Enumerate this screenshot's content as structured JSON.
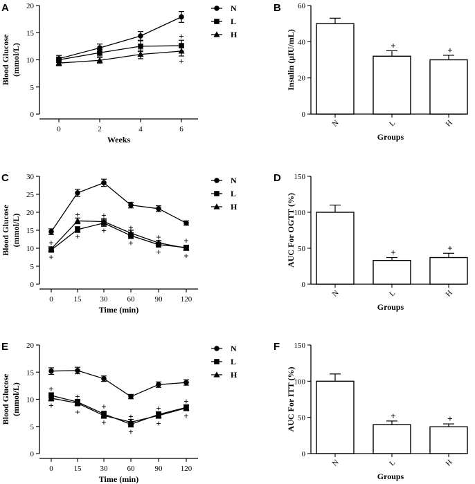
{
  "chart_data": [
    {
      "id": "A",
      "type": "line",
      "panel": "A",
      "xlabel": "Weeks",
      "ylabel": [
        "Blood Glucose",
        "(mmol/L)"
      ],
      "x": [
        0,
        2,
        4,
        6
      ],
      "xticks": [
        "0",
        "2",
        "4",
        "6"
      ],
      "ylim": [
        0,
        20
      ],
      "yticks": [
        0,
        5,
        10,
        15,
        20
      ],
      "series": [
        {
          "name": "N",
          "marker": "circle",
          "values": [
            10.2,
            12.2,
            14.4,
            17.9
          ],
          "errors": [
            0.6,
            0.7,
            0.8,
            1.0
          ]
        },
        {
          "name": "L",
          "marker": "square",
          "values": [
            10.0,
            11.3,
            12.5,
            12.6
          ],
          "errors": [
            0.5,
            0.6,
            1.0,
            1.0
          ]
        },
        {
          "name": "H",
          "marker": "triangle",
          "values": [
            9.4,
            9.9,
            11.0,
            11.6
          ],
          "errors": [
            0.5,
            0.5,
            0.8,
            0.9
          ]
        }
      ],
      "legend": [
        "N",
        "L",
        "H"
      ],
      "annotations": [
        {
          "text": "+",
          "x": 6,
          "y": 14.4
        },
        {
          "text": "+",
          "x": 6,
          "y": 9.8
        }
      ]
    },
    {
      "id": "B",
      "type": "bar",
      "panel": "B",
      "xlabel": "Groups",
      "ylabel": "Insulin (μIU/mL)",
      "categories": [
        "N",
        "L",
        "H"
      ],
      "values": [
        50,
        32,
        30
      ],
      "errors": [
        3,
        3,
        2.5
      ],
      "ylim": [
        0,
        60
      ],
      "yticks": [
        0,
        20,
        40,
        60
      ],
      "annotations": [
        "",
        "+",
        "+"
      ]
    },
    {
      "id": "C",
      "type": "line",
      "panel": "C",
      "xlabel": "Time (min)",
      "ylabel": [
        "Blood Glucose",
        "(mmol/L)"
      ],
      "x": [
        0,
        15,
        30,
        60,
        90,
        120
      ],
      "xticks": [
        "0",
        "15",
        "30",
        "60",
        "90",
        "120"
      ],
      "ylim": [
        0,
        30
      ],
      "yticks": [
        0,
        5,
        10,
        15,
        20,
        25,
        30
      ],
      "series": [
        {
          "name": "N",
          "marker": "circle",
          "values": [
            14.6,
            25.4,
            28.2,
            22.0,
            21.0,
            17.0
          ],
          "errors": [
            0.8,
            1.0,
            1.0,
            0.8,
            0.8,
            0.6
          ]
        },
        {
          "name": "L",
          "marker": "square",
          "values": [
            9.5,
            15.2,
            17.0,
            13.5,
            11.0,
            10.2
          ],
          "errors": [
            0.6,
            0.8,
            0.9,
            0.8,
            0.7,
            0.6
          ]
        },
        {
          "name": "H",
          "marker": "triangle",
          "values": [
            9.8,
            17.6,
            17.4,
            14.2,
            11.5,
            10.0
          ],
          "errors": [
            0.6,
            0.8,
            0.9,
            0.8,
            0.7,
            0.6
          ]
        }
      ],
      "legend": [
        "N",
        "L",
        "H"
      ],
      "annotations": [
        {
          "text": "+",
          "x": 0,
          "y": 11.6
        },
        {
          "text": "+",
          "x": 0,
          "y": 7.6
        },
        {
          "text": "+",
          "x": 15,
          "y": 19.4
        },
        {
          "text": "+",
          "x": 15,
          "y": 13.4
        },
        {
          "text": "+",
          "x": 30,
          "y": 19.2
        },
        {
          "text": "+",
          "x": 30,
          "y": 15.0
        },
        {
          "text": "+",
          "x": 60,
          "y": 15.8
        },
        {
          "text": "+",
          "x": 60,
          "y": 11.5
        },
        {
          "text": "+",
          "x": 90,
          "y": 13.2
        },
        {
          "text": "+",
          "x": 90,
          "y": 9.0
        },
        {
          "text": "+",
          "x": 120,
          "y": 12.2
        },
        {
          "text": "+",
          "x": 120,
          "y": 8.0
        }
      ]
    },
    {
      "id": "D",
      "type": "bar",
      "panel": "D",
      "xlabel": "Groups",
      "ylabel": "AUC For OGTT (%)",
      "categories": [
        "N",
        "L",
        "H"
      ],
      "values": [
        100,
        33,
        37
      ],
      "errors": [
        10,
        4,
        6
      ],
      "ylim": [
        0,
        150
      ],
      "yticks": [
        0,
        50,
        100,
        150
      ],
      "annotations": [
        "",
        "+",
        "+"
      ]
    },
    {
      "id": "E",
      "type": "line",
      "panel": "E",
      "xlabel": "Time (min)",
      "ylabel": [
        "Blood Glucose",
        "(mmol/L)"
      ],
      "x": [
        0,
        15,
        30,
        60,
        90,
        120
      ],
      "xticks": [
        "0",
        "15",
        "30",
        "60",
        "90",
        "120"
      ],
      "ylim": [
        0,
        20
      ],
      "yticks": [
        0,
        5,
        10,
        15,
        20
      ],
      "series": [
        {
          "name": "N",
          "marker": "circle",
          "values": [
            15.2,
            15.3,
            13.8,
            10.5,
            12.7,
            13.1
          ],
          "errors": [
            0.6,
            0.6,
            0.5,
            0.4,
            0.5,
            0.5
          ]
        },
        {
          "name": "L",
          "marker": "square",
          "values": [
            10.7,
            9.5,
            7.3,
            5.4,
            7.2,
            8.5
          ],
          "errors": [
            0.5,
            0.5,
            0.5,
            0.5,
            0.5,
            0.5
          ]
        },
        {
          "name": "H",
          "marker": "triangle",
          "values": [
            10.2,
            9.3,
            7.0,
            5.8,
            7.0,
            8.4
          ],
          "errors": [
            0.5,
            0.5,
            0.5,
            0.5,
            0.5,
            0.5
          ]
        }
      ],
      "legend": [
        "N",
        "L",
        "H"
      ],
      "annotations": [
        {
          "text": "+",
          "x": 0,
          "y": 12.0
        },
        {
          "text": "+",
          "x": 0,
          "y": 8.9
        },
        {
          "text": "+",
          "x": 15,
          "y": 10.6
        },
        {
          "text": "+",
          "x": 15,
          "y": 7.7
        },
        {
          "text": "+",
          "x": 30,
          "y": 8.7
        },
        {
          "text": "+",
          "x": 30,
          "y": 5.8
        },
        {
          "text": "+",
          "x": 60,
          "y": 6.9
        },
        {
          "text": "+",
          "x": 60,
          "y": 4.1
        },
        {
          "text": "+",
          "x": 90,
          "y": 8.4
        },
        {
          "text": "+",
          "x": 90,
          "y": 5.6
        },
        {
          "text": "+",
          "x": 120,
          "y": 9.7
        },
        {
          "text": "+",
          "x": 120,
          "y": 7.0
        }
      ]
    },
    {
      "id": "F",
      "type": "bar",
      "panel": "F",
      "xlabel": "Groups",
      "ylabel": "AUC For ITT (%)",
      "categories": [
        "N",
        "L",
        "H"
      ],
      "values": [
        100,
        40,
        37
      ],
      "errors": [
        10,
        5,
        4
      ],
      "ylim": [
        0,
        150
      ],
      "yticks": [
        0,
        50,
        100,
        150
      ],
      "annotations": [
        "",
        "+",
        "+"
      ]
    }
  ]
}
